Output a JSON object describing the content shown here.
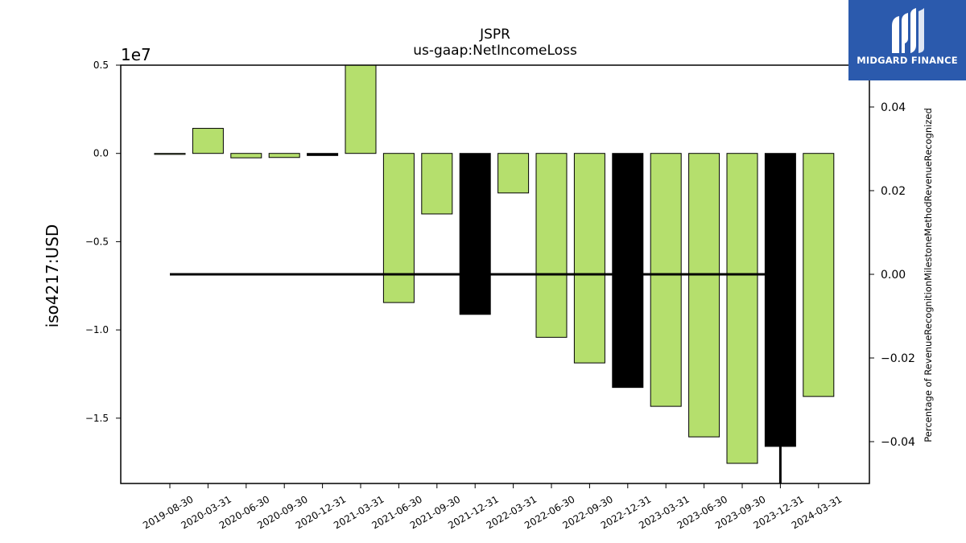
{
  "chart_data": {
    "type": "bar",
    "title": "JSPR",
    "subtitle": "us-gaap:NetIncomeLoss",
    "ylabel": "iso4217:USD",
    "y_offset_label": "1e7",
    "y2label": "Percentage of RevenueRecognitionMilestoneMethodRevenueRecognized",
    "categories": [
      "2019-08-30",
      "2020-03-31",
      "2020-06-30",
      "2020-09-30",
      "2020-12-31",
      "2021-03-31",
      "2021-06-30",
      "2021-09-30",
      "2021-12-31",
      "2022-03-31",
      "2022-06-30",
      "2022-09-30",
      "2022-12-31",
      "2023-03-31",
      "2023-06-30",
      "2023-09-30",
      "2023-12-31",
      "2024-03-31"
    ],
    "values": [
      -30000,
      1420000,
      -250000,
      -230000,
      -120000,
      5000000,
      -8450000,
      -3430000,
      -9120000,
      -2240000,
      -10420000,
      -11870000,
      -13260000,
      -14330000,
      -16060000,
      -17560000,
      -16600000,
      -13770000
    ],
    "bar_colors": [
      "#b5df6d",
      "#b5df6d",
      "#b5df6d",
      "#b5df6d",
      "#000000",
      "#b5df6d",
      "#b5df6d",
      "#b5df6d",
      "#000000",
      "#b5df6d",
      "#b5df6d",
      "#b5df6d",
      "#000000",
      "#b5df6d",
      "#b5df6d",
      "#b5df6d",
      "#000000",
      "#b5df6d"
    ],
    "ylim": [
      -18700000,
      5000000
    ],
    "yticks": [
      5000000,
      0,
      -5000000,
      -10000000,
      -15000000
    ],
    "ytick_labels": [
      "0.5",
      "0.0",
      "−0.5",
      "−1.0",
      "−1.5"
    ],
    "y2lim": [
      -0.05,
      0.05
    ],
    "y2ticks": [
      0.04,
      0.02,
      0.0,
      -0.02,
      -0.04
    ],
    "y2tick_labels": [
      "0.04",
      "0.02",
      "0.00",
      "−0.02",
      "−0.04"
    ],
    "line_series": {
      "axis": "right",
      "value": 0.0,
      "from_category": "2019-08-30",
      "to_category": "2023-12-31",
      "color": "#000000"
    },
    "drop_line": {
      "category": "2023-12-31",
      "axis": "right",
      "from": 0.0,
      "to": -0.05
    },
    "colors": {
      "green_bar": "#b5df6d",
      "black_bar": "#000000"
    }
  },
  "logo": {
    "text": "MIDGARD FINANCE",
    "background": "#2b5aad"
  }
}
